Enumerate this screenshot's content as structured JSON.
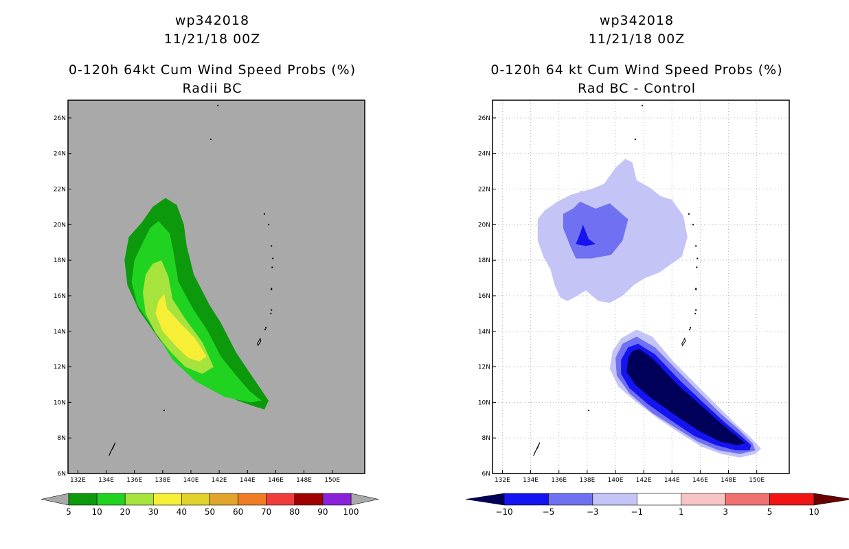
{
  "chart_data": [
    {
      "type": "contour",
      "title_line1": "wp342018",
      "title_line2": "11/21/18 00Z",
      "title_line3": "0-120h 64kt Cum Wind Speed Probs (%)",
      "title_line4": "Radii BC",
      "x_ticks": [
        "132E",
        "134E",
        "136E",
        "138E",
        "140E",
        "142E",
        "144E",
        "146E",
        "148E",
        "150E"
      ],
      "y_ticks": [
        "6N",
        "8N",
        "10N",
        "12N",
        "14N",
        "16N",
        "18N",
        "20N",
        "22N",
        "24N",
        "26N"
      ],
      "xlim": [
        131.3,
        152.3
      ],
      "ylim": [
        6,
        27
      ],
      "grid": false,
      "background_color": "#a9a9a9",
      "colorbar": {
        "labels": [
          "5",
          "10",
          "20",
          "30",
          "40",
          "50",
          "60",
          "70",
          "80",
          "90",
          "100"
        ],
        "colors": [
          "#0c9a0c",
          "#20d320",
          "#a6e33c",
          "#f7ef36",
          "#e1d12a",
          "#e0a52a",
          "#ee7d24",
          "#f03c3c",
          "#a00000",
          "#8a22dc"
        ],
        "arrow_color": "#a9a9a9"
      },
      "contours": [
        {
          "level": 5,
          "color": "#0c9a0c",
          "points": [
            [
              138.2,
              21.5
            ],
            [
              139.0,
              21.1
            ],
            [
              139.5,
              20.0
            ],
            [
              139.7,
              18.8
            ],
            [
              140.2,
              17.2
            ],
            [
              141.3,
              15.5
            ],
            [
              142.1,
              14.5
            ],
            [
              143.2,
              12.8
            ],
            [
              144.3,
              11.5
            ],
            [
              145.5,
              10.1
            ],
            [
              145.2,
              9.6
            ],
            [
              144.4,
              9.8
            ],
            [
              143.3,
              10.1
            ],
            [
              141.2,
              10.9
            ],
            [
              139.5,
              11.9
            ],
            [
              137.8,
              13.5
            ],
            [
              136.3,
              15.2
            ],
            [
              135.5,
              16.6
            ],
            [
              135.3,
              18.0
            ],
            [
              135.6,
              19.3
            ],
            [
              136.5,
              20.1
            ],
            [
              137.3,
              21.0
            ]
          ]
        },
        {
          "level": 10,
          "color": "#20d320",
          "points": [
            [
              137.7,
              20.2
            ],
            [
              138.5,
              19.5
            ],
            [
              138.8,
              18.3
            ],
            [
              139.1,
              16.8
            ],
            [
              140.2,
              15.2
            ],
            [
              141.2,
              14.0
            ],
            [
              142.1,
              12.6
            ],
            [
              143.1,
              11.6
            ],
            [
              144.2,
              10.6
            ],
            [
              145.0,
              10.1
            ],
            [
              144.2,
              10.0
            ],
            [
              142.4,
              10.3
            ],
            [
              140.3,
              11.2
            ],
            [
              138.7,
              12.4
            ],
            [
              137.3,
              14.2
            ],
            [
              136.2,
              15.5
            ],
            [
              135.8,
              16.8
            ],
            [
              136.0,
              18.0
            ],
            [
              136.6,
              19.0
            ],
            [
              137.1,
              19.8
            ]
          ]
        },
        {
          "level": 20,
          "color": "#a6e33c",
          "points": [
            [
              137.9,
              18.0
            ],
            [
              138.4,
              17.1
            ],
            [
              138.7,
              15.8
            ],
            [
              139.6,
              14.7
            ],
            [
              140.8,
              13.4
            ],
            [
              141.6,
              12.0
            ],
            [
              140.8,
              11.6
            ],
            [
              139.6,
              12.0
            ],
            [
              138.5,
              12.9
            ],
            [
              137.5,
              13.9
            ],
            [
              136.8,
              15.0
            ],
            [
              136.6,
              16.2
            ],
            [
              136.8,
              17.2
            ],
            [
              137.3,
              17.8
            ]
          ]
        },
        {
          "level": 30,
          "color": "#f7ef36",
          "points": [
            [
              138.1,
              16.1
            ],
            [
              138.3,
              15.3
            ],
            [
              139.2,
              14.5
            ],
            [
              140.3,
              13.6
            ],
            [
              141.1,
              12.6
            ],
            [
              140.6,
              12.3
            ],
            [
              139.8,
              12.5
            ],
            [
              138.9,
              13.2
            ],
            [
              138.0,
              14.0
            ],
            [
              137.5,
              15.0
            ],
            [
              137.7,
              15.7
            ]
          ]
        }
      ],
      "coast_outlines": [
        [
          [
            134.3,
            7.2
          ],
          [
            134.5,
            7.45
          ],
          [
            134.65,
            7.75
          ],
          [
            134.55,
            7.6
          ],
          [
            134.4,
            7.35
          ],
          [
            134.2,
            7.0
          ]
        ],
        [
          [
            144.7,
            13.3
          ],
          [
            144.9,
            13.6
          ],
          [
            144.95,
            13.45
          ],
          [
            144.75,
            13.2
          ]
        ]
      ],
      "island_dots": [
        [
          141.9,
          26.7
        ],
        [
          141.4,
          24.8
        ],
        [
          145.2,
          20.6
        ],
        [
          145.5,
          20.0
        ],
        [
          145.7,
          18.8
        ],
        [
          145.8,
          18.1
        ],
        [
          145.75,
          17.6
        ],
        [
          145.7,
          16.4
        ],
        [
          145.7,
          15.2
        ],
        [
          145.65,
          15.0
        ],
        [
          145.3,
          14.2
        ],
        [
          145.25,
          14.1
        ],
        [
          138.1,
          9.55
        ],
        [
          145.7,
          16.35
        ]
      ]
    },
    {
      "type": "contour",
      "title_line1": "wp342018",
      "title_line2": "11/21/18 00Z",
      "title_line3": "0-120h 64 kt Cum Wind Speed Probs (%)",
      "title_line4": "Rad BC - Control",
      "x_ticks": [
        "132E",
        "134E",
        "136E",
        "138E",
        "140E",
        "142E",
        "144E",
        "146E",
        "148E",
        "150E"
      ],
      "y_ticks": [
        "6N",
        "8N",
        "10N",
        "12N",
        "14N",
        "16N",
        "18N",
        "20N",
        "22N",
        "24N",
        "26N"
      ],
      "xlim": [
        131.3,
        152.3
      ],
      "ylim": [
        6,
        27
      ],
      "grid": true,
      "background_color": "#ffffff",
      "colorbar": {
        "labels": [
          "-10",
          "-5",
          "-3",
          "-1",
          "1",
          "3",
          "5",
          "10"
        ],
        "colors": [
          "#00005a",
          "#1414f0",
          "#7070f2",
          "#c4c4f6",
          "#ffffff",
          "#f7c5c5",
          "#f07070",
          "#f01414",
          "#6a0000"
        ]
      },
      "contours": [
        {
          "level": -1,
          "color": "#c4c4f6",
          "points": [
            [
              138.3,
              22.0
            ],
            [
              139.2,
              22.3
            ],
            [
              140.0,
              23.2
            ],
            [
              140.7,
              23.7
            ],
            [
              141.2,
              23.5
            ],
            [
              141.5,
              22.5
            ],
            [
              142.4,
              22.1
            ],
            [
              143.2,
              21.6
            ],
            [
              144.0,
              21.4
            ],
            [
              144.8,
              20.5
            ],
            [
              145.1,
              19.3
            ],
            [
              144.7,
              18.2
            ],
            [
              143.8,
              17.7
            ],
            [
              143.1,
              17.3
            ],
            [
              142.1,
              17.0
            ],
            [
              141.3,
              16.6
            ],
            [
              140.5,
              16.0
            ],
            [
              139.6,
              15.6
            ],
            [
              138.8,
              15.7
            ],
            [
              137.9,
              16.3
            ],
            [
              137.3,
              16.0
            ],
            [
              136.6,
              15.7
            ],
            [
              136.1,
              15.9
            ],
            [
              135.7,
              16.6
            ],
            [
              135.4,
              17.5
            ],
            [
              134.9,
              18.2
            ],
            [
              134.5,
              19.1
            ],
            [
              134.5,
              20.3
            ],
            [
              135.0,
              20.8
            ],
            [
              135.9,
              21.3
            ],
            [
              136.9,
              21.7
            ]
          ]
        },
        {
          "level": -3,
          "color": "#7070f2",
          "points": [
            [
              137.5,
              21.3
            ],
            [
              138.6,
              20.9
            ],
            [
              139.6,
              21.2
            ],
            [
              140.9,
              20.3
            ],
            [
              140.5,
              19.1
            ],
            [
              139.7,
              18.3
            ],
            [
              138.3,
              18.1
            ],
            [
              137.2,
              18.1
            ],
            [
              136.8,
              18.8
            ],
            [
              136.3,
              19.8
            ],
            [
              136.3,
              20.6
            ],
            [
              137.0,
              20.9
            ]
          ]
        },
        {
          "level": -1,
          "color": "#c4c4f6",
          "points": [
            [
              141.5,
              14.1
            ],
            [
              142.6,
              13.7
            ],
            [
              144.1,
              12.3
            ],
            [
              145.6,
              11.1
            ],
            [
              147.1,
              9.9
            ],
            [
              148.5,
              8.8
            ],
            [
              149.6,
              8.0
            ],
            [
              150.3,
              7.4
            ],
            [
              149.9,
              7.1
            ],
            [
              148.8,
              6.9
            ],
            [
              147.5,
              7.1
            ],
            [
              146.1,
              7.5
            ],
            [
              144.5,
              8.3
            ],
            [
              143.0,
              9.1
            ],
            [
              141.5,
              10.0
            ],
            [
              140.2,
              10.9
            ],
            [
              139.6,
              11.9
            ],
            [
              139.8,
              12.9
            ],
            [
              140.4,
              13.6
            ]
          ]
        },
        {
          "level": -3,
          "color": "#7070f2",
          "points": [
            [
              141.5,
              13.7
            ],
            [
              142.8,
              13.1
            ],
            [
              144.5,
              11.7
            ],
            [
              146.0,
              10.5
            ],
            [
              147.4,
              9.4
            ],
            [
              148.7,
              8.5
            ],
            [
              149.7,
              7.7
            ],
            [
              149.9,
              7.3
            ],
            [
              148.8,
              7.1
            ],
            [
              147.3,
              7.3
            ],
            [
              145.8,
              7.8
            ],
            [
              144.2,
              8.6
            ],
            [
              142.6,
              9.4
            ],
            [
              141.0,
              10.5
            ],
            [
              140.1,
              11.5
            ],
            [
              140.0,
              12.5
            ],
            [
              140.5,
              13.3
            ]
          ]
        },
        {
          "level": -5,
          "color": "#1414f0",
          "points": [
            [
              141.6,
              13.3
            ],
            [
              142.8,
              12.7
            ],
            [
              144.6,
              11.2
            ],
            [
              146.2,
              10.0
            ],
            [
              147.7,
              8.9
            ],
            [
              148.9,
              8.1
            ],
            [
              149.6,
              7.6
            ],
            [
              149.5,
              7.3
            ],
            [
              148.5,
              7.3
            ],
            [
              147.1,
              7.6
            ],
            [
              145.6,
              8.1
            ],
            [
              143.9,
              9.0
            ],
            [
              142.3,
              9.9
            ],
            [
              141.0,
              10.8
            ],
            [
              140.4,
              11.6
            ],
            [
              140.4,
              12.4
            ],
            [
              140.9,
              13.1
            ]
          ]
        },
        {
          "level": -10,
          "color": "#00005a",
          "points": [
            [
              141.7,
              13.0
            ],
            [
              142.6,
              12.5
            ],
            [
              144.4,
              11.0
            ],
            [
              146.1,
              9.8
            ],
            [
              147.5,
              8.8
            ],
            [
              148.6,
              8.1
            ],
            [
              149.2,
              7.7
            ],
            [
              148.6,
              7.6
            ],
            [
              147.4,
              7.8
            ],
            [
              145.9,
              8.4
            ],
            [
              144.2,
              9.3
            ],
            [
              142.6,
              10.2
            ],
            [
              141.4,
              11.0
            ],
            [
              140.8,
              11.7
            ],
            [
              140.9,
              12.5
            ],
            [
              141.2,
              12.9
            ]
          ]
        },
        {
          "level": -5,
          "color": "#1414f0",
          "points": [
            [
              137.7,
              20.0
            ],
            [
              138.1,
              19.2
            ],
            [
              138.6,
              18.9
            ],
            [
              137.9,
              18.8
            ],
            [
              137.2,
              18.9
            ],
            [
              137.5,
              19.5
            ]
          ]
        },
        {
          "level": -1,
          "color": "#c4c4f6",
          "points": [
            [
              137.5,
              21.9
            ],
            [
              137.7,
              21.9
            ],
            [
              137.6,
              21.5
            ],
            [
              137.4,
              21.5
            ]
          ]
        }
      ],
      "coast_outlines": [
        [
          [
            134.3,
            7.2
          ],
          [
            134.5,
            7.45
          ],
          [
            134.65,
            7.75
          ],
          [
            134.55,
            7.6
          ],
          [
            134.4,
            7.35
          ],
          [
            134.2,
            7.0
          ]
        ],
        [
          [
            144.7,
            13.3
          ],
          [
            144.9,
            13.6
          ],
          [
            144.95,
            13.45
          ],
          [
            144.75,
            13.2
          ]
        ]
      ],
      "island_dots": [
        [
          141.9,
          26.7
        ],
        [
          141.4,
          24.8
        ],
        [
          145.2,
          20.6
        ],
        [
          145.5,
          20.0
        ],
        [
          145.7,
          18.8
        ],
        [
          145.8,
          18.1
        ],
        [
          145.75,
          17.6
        ],
        [
          145.7,
          16.4
        ],
        [
          145.7,
          15.2
        ],
        [
          145.65,
          15.0
        ],
        [
          145.3,
          14.2
        ],
        [
          145.25,
          14.1
        ],
        [
          138.1,
          9.55
        ],
        [
          145.7,
          16.35
        ]
      ]
    }
  ]
}
